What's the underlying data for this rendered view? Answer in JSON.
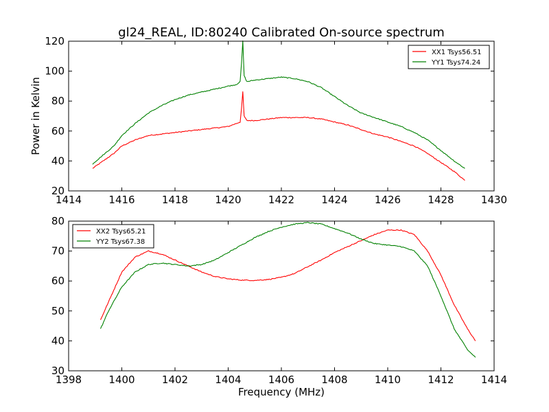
{
  "chart_data": {
    "title": "gl24_REAL, ID:80240 Calibrated On-source spectrum",
    "charts": [
      {
        "type": "line",
        "xlabel": "",
        "ylabel": "Power in Kelvin",
        "xlim": [
          1414,
          1430
        ],
        "ylim": [
          20,
          120
        ],
        "xticks": [
          "1414",
          "1416",
          "1418",
          "1420",
          "1422",
          "1424",
          "1426",
          "1428",
          "1430"
        ],
        "yticks": [
          "20",
          "40",
          "60",
          "80",
          "100",
          "120"
        ],
        "grid": false,
        "legend_position": "top-right",
        "series": [
          {
            "name": "XX1 Tsys56.51",
            "color": "#ff0000",
            "x": [
              1414.9,
              1415.3,
              1415.7,
              1416.0,
              1416.5,
              1417.0,
              1417.5,
              1418.0,
              1418.5,
              1419.0,
              1419.5,
              1420.0,
              1420.3,
              1420.45,
              1420.5,
              1420.55,
              1420.6,
              1420.7,
              1421.0,
              1421.5,
              1422.0,
              1422.5,
              1423.0,
              1423.5,
              1424.0,
              1424.5,
              1425.0,
              1425.5,
              1426.0,
              1426.5,
              1427.0,
              1427.5,
              1428.0,
              1428.5,
              1428.9
            ],
            "y": [
              35,
              40,
              45,
              50,
              54,
              57,
              58,
              59,
              60,
              61,
              62,
              63,
              65,
              66,
              75,
              86,
              70,
              67,
              67,
              68,
              69,
              69,
              69,
              68,
              66,
              64,
              61,
              58,
              56,
              53,
              50,
              45,
              39,
              33,
              27
            ]
          },
          {
            "name": "YY1 Tsys74.24",
            "color": "#008000",
            "x": [
              1414.9,
              1415.3,
              1415.7,
              1416.0,
              1416.5,
              1417.0,
              1417.5,
              1418.0,
              1418.5,
              1419.0,
              1419.5,
              1420.0,
              1420.3,
              1420.45,
              1420.5,
              1420.55,
              1420.6,
              1420.7,
              1421.0,
              1421.5,
              1422.0,
              1422.5,
              1423.0,
              1423.5,
              1424.0,
              1424.5,
              1425.0,
              1425.5,
              1426.0,
              1426.5,
              1427.0,
              1427.5,
              1428.0,
              1428.5,
              1428.9
            ],
            "y": [
              38,
              44,
              50,
              57,
              65,
              72,
              77,
              81,
              84,
              86,
              88,
              90,
              91,
              93,
              105,
              120,
              97,
              93,
              94,
              95,
              96,
              95,
              93,
              89,
              83,
              77,
              72,
              69,
              66,
              63,
              59,
              54,
              47,
              40,
              35
            ]
          }
        ]
      },
      {
        "type": "line",
        "xlabel": "Frequency (MHz)",
        "ylabel": "",
        "xlim": [
          1398,
          1414
        ],
        "ylim": [
          30,
          80
        ],
        "xticks": [
          "1398",
          "1400",
          "1402",
          "1404",
          "1406",
          "1408",
          "1410",
          "1412",
          "1414"
        ],
        "yticks": [
          "30",
          "40",
          "50",
          "60",
          "70",
          "80"
        ],
        "grid": false,
        "legend_position": "top-left",
        "series": [
          {
            "name": "XX2 Tsys65.21",
            "color": "#ff0000",
            "x": [
              1399.2,
              1399.5,
              1400.0,
              1400.5,
              1401.0,
              1401.5,
              1402.0,
              1402.5,
              1403.0,
              1403.5,
              1404.0,
              1404.5,
              1405.0,
              1405.5,
              1406.0,
              1406.5,
              1407.0,
              1407.5,
              1408.0,
              1408.5,
              1409.0,
              1409.5,
              1410.0,
              1410.5,
              1411.0,
              1411.5,
              1412.0,
              1412.5,
              1413.0,
              1413.3
            ],
            "y": [
              47,
              53,
              63,
              68,
              70,
              69,
              67,
              65,
              63,
              61.5,
              60.7,
              60.3,
              60.2,
              60.5,
              61.2,
              62.5,
              64.8,
              67,
              69.5,
              71.5,
              73.5,
              75.5,
              77,
              77,
              75.5,
              70,
              62,
              52,
              44,
              40
            ]
          },
          {
            "name": "YY2 Tsys67.38",
            "color": "#008000",
            "x": [
              1399.2,
              1399.5,
              1400.0,
              1400.5,
              1401.0,
              1401.5,
              1402.0,
              1402.5,
              1403.0,
              1403.5,
              1404.0,
              1404.5,
              1405.0,
              1405.5,
              1406.0,
              1406.5,
              1407.0,
              1407.5,
              1408.0,
              1408.5,
              1409.0,
              1409.5,
              1410.0,
              1410.5,
              1411.0,
              1411.5,
              1412.0,
              1412.5,
              1413.0,
              1413.3
            ],
            "y": [
              44,
              50,
              58,
              63,
              65.5,
              66,
              65.5,
              65,
              65.5,
              67,
              69.5,
              72,
              74.5,
              76.5,
              78,
              79,
              79.5,
              79,
              77.5,
              76,
              74,
              72.5,
              72,
              71.5,
              70,
              65,
              55,
              44,
              37,
              34.5
            ]
          }
        ]
      }
    ]
  }
}
